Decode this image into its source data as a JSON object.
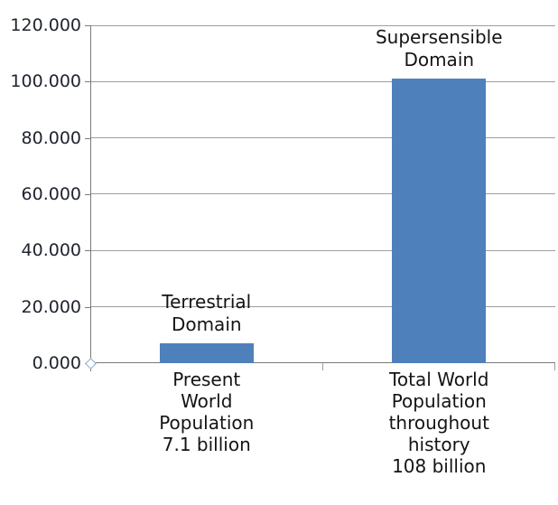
{
  "chart_data": {
    "type": "bar",
    "title": "",
    "xlabel": "",
    "ylabel": "",
    "ylim": [
      0,
      120000
    ],
    "grid": "horizontal",
    "legend": "none",
    "bar_color": "#4E81BC",
    "categories": [
      "Present\nWorld\nPopulation\n7.1 billion",
      "Total World\nPopulation\nthroughout\nhistory\n108 billion"
    ],
    "values": [
      7100,
      101000
    ],
    "bar_labels": [
      "Terrestrial\nDomain",
      "Supersensible\nDomain"
    ],
    "ytick_labels": [
      "120.000",
      "100.000",
      "80.000",
      "60.000",
      "40.000",
      "20.000",
      "0.000"
    ]
  },
  "colors": {
    "bar": "#4E81BC",
    "gridline": "#9e9e9e",
    "axis": "#7a7a7a",
    "tick_label": "#20242e",
    "label_text": "#141414",
    "origin_marker": "#8CA9D0",
    "background": "#ffffff"
  }
}
